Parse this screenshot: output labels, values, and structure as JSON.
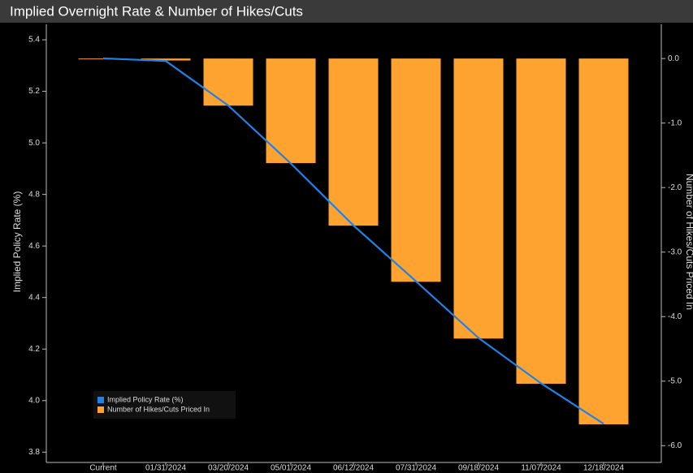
{
  "chart_data": {
    "type": "bar_line",
    "title": "Implied Overnight Rate & Number of Hikes/Cuts",
    "ylabel": "Implied Policy Rate (%)",
    "y2label": "Number of Hikes/Cuts Priced In",
    "categories": [
      "Current",
      "01/31/2024",
      "03/20/2024",
      "05/01/2024",
      "06/12/2024",
      "07/31/2024",
      "09/18/2024",
      "11/07/2024",
      "12/18/2024"
    ],
    "series": [
      {
        "name": "Implied Policy Rate (%)",
        "type": "line",
        "color": "#1f82e6",
        "axis": "y",
        "values": [
          5.328,
          5.318,
          5.145,
          4.92,
          4.68,
          4.463,
          4.243,
          4.067,
          3.91
        ]
      },
      {
        "name": "Number of Hikes/Cuts Priced In",
        "type": "bar",
        "color": "#ffa330",
        "axis": "y2",
        "values": [
          -0.01,
          -0.03,
          -0.73,
          -1.62,
          -2.59,
          -3.46,
          -4.34,
          -5.04,
          -5.67
        ]
      }
    ],
    "ylim": [
      3.76,
      5.46
    ],
    "yticks": [
      3.8,
      {
        "value": 4,
        "label": "4.0"
      },
      4.2,
      4.4,
      4.6,
      4.8,
      {
        "value": 5,
        "label": "5.0"
      },
      5.2,
      5.4
    ],
    "y2lim": [
      -6.26,
      0.53
    ],
    "y2ticks": [
      {
        "value": -6,
        "label": "-6.0"
      },
      {
        "value": -5,
        "label": "-5.0"
      },
      {
        "value": -4,
        "label": "-4.0"
      },
      {
        "value": -3,
        "label": "-3.0"
      },
      {
        "value": -2,
        "label": "-2.0"
      },
      {
        "value": -1,
        "label": "-1.0"
      },
      {
        "value": 0,
        "label": "0.0"
      }
    ],
    "grid": false,
    "legend": "lower left"
  }
}
